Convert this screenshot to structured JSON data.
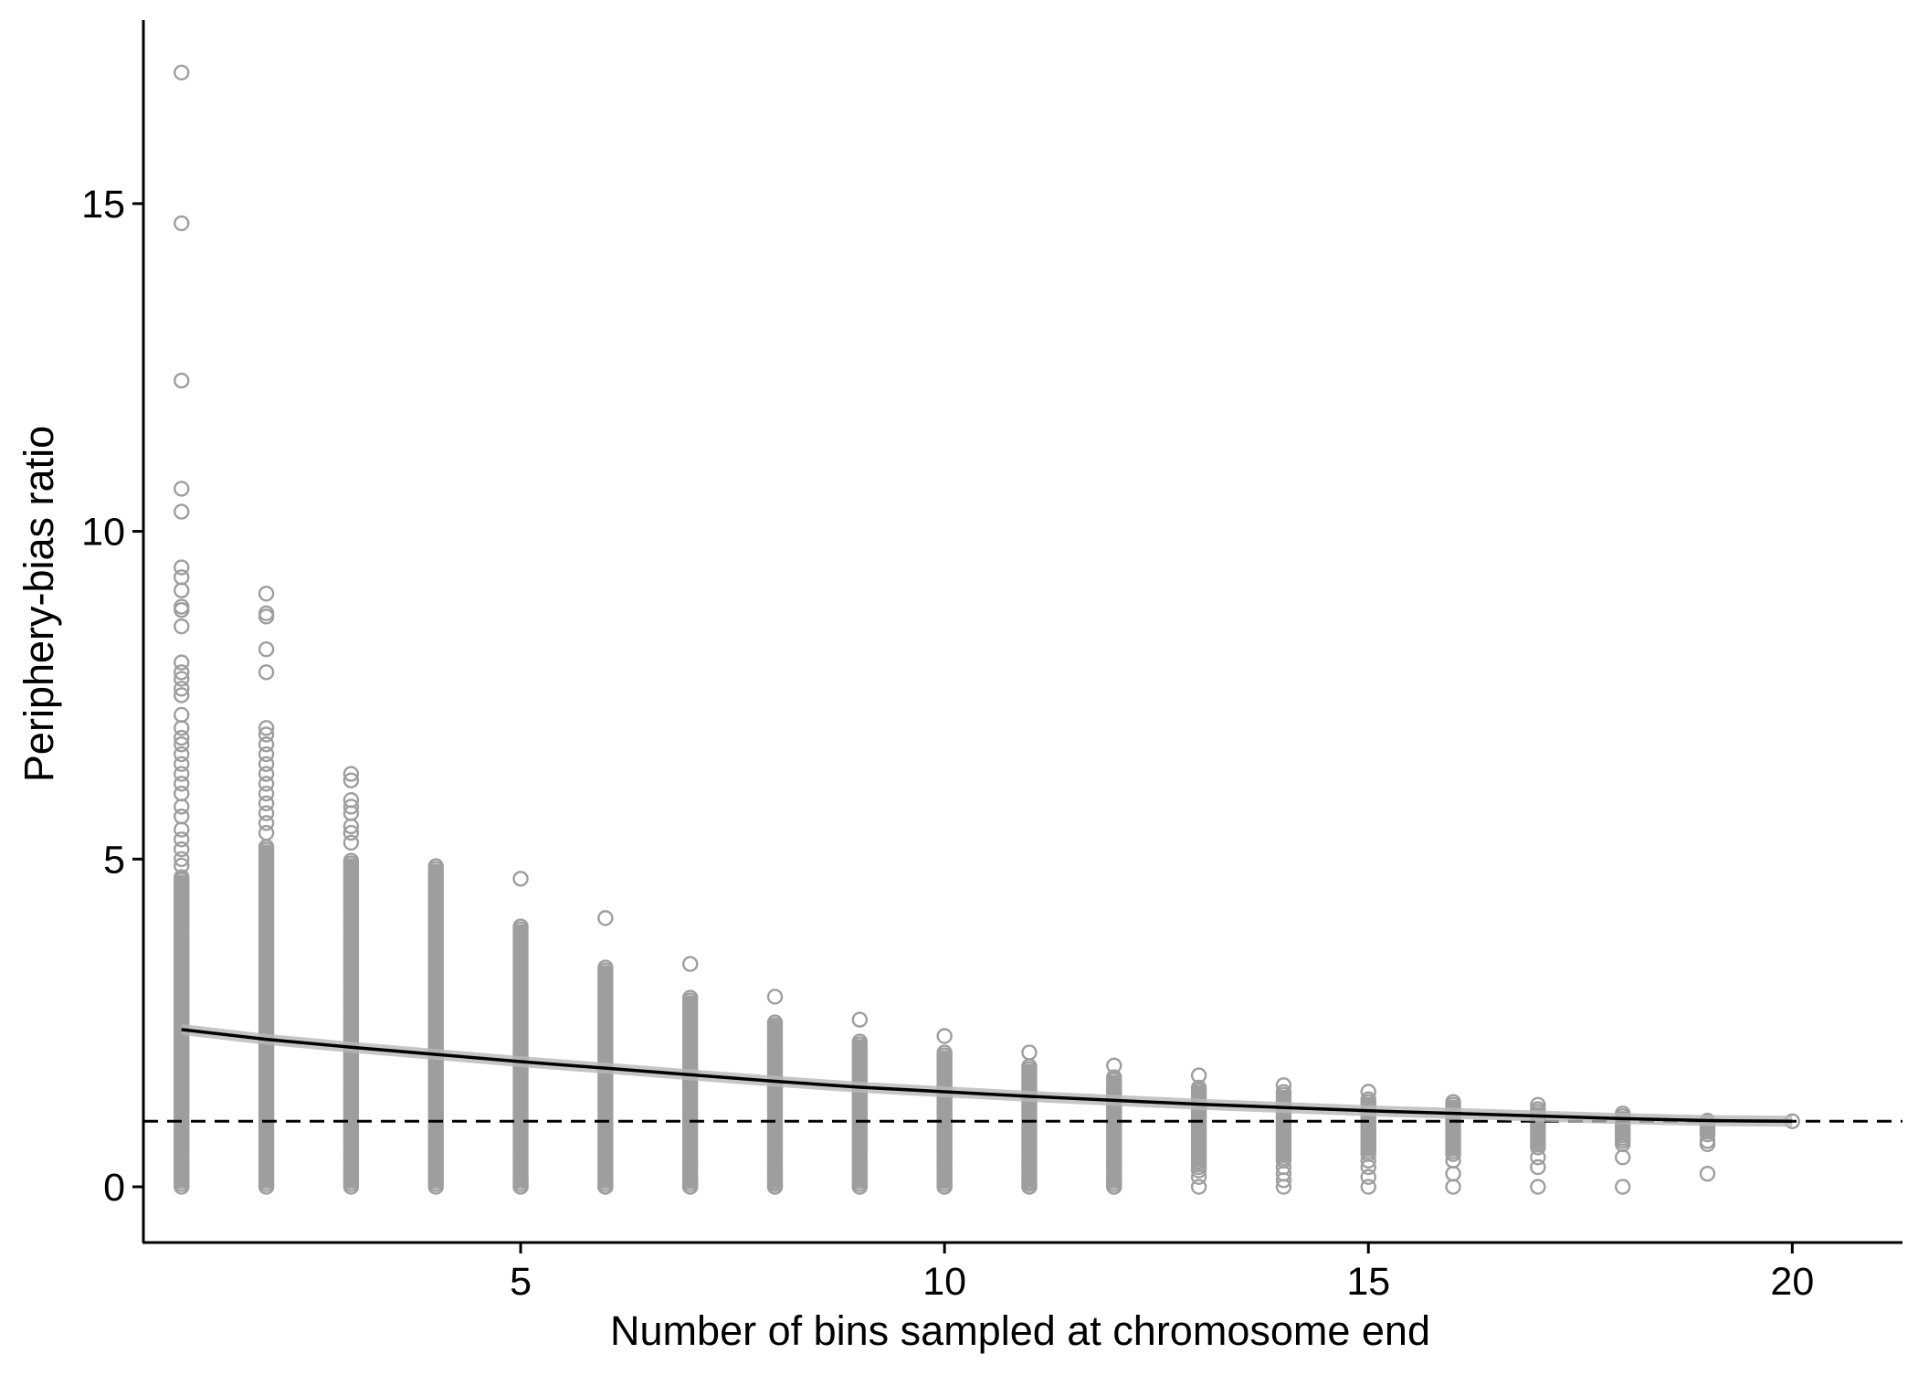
{
  "chart_data": {
    "type": "scatter",
    "title": "",
    "xlabel": "Number of bins sampled at chromosome end",
    "ylabel": "Periphery-bias ratio",
    "xlim": [
      0.55,
      21.3
    ],
    "ylim": [
      -0.85,
      17.8
    ],
    "x_ticks": [
      5,
      10,
      15,
      20
    ],
    "y_ticks": [
      0,
      5,
      10,
      15
    ],
    "x_tick_labels": [
      "5",
      "10",
      "15",
      "20"
    ],
    "y_tick_labels": [
      "0",
      "5",
      "10",
      "15"
    ],
    "grid": false,
    "legend": "none",
    "point_color": "#9e9e9e",
    "trend_color": "#000000",
    "trend_band_color": "#b8b8b8",
    "reference_line": {
      "y": 1,
      "style": "dashed",
      "color": "#000000"
    },
    "columns": [
      {
        "x": 1,
        "y_min": 0,
        "dense_max": 4.75,
        "outliers": [
          17.0,
          14.7,
          12.3,
          10.65,
          10.3,
          9.45,
          9.3,
          9.1,
          8.85,
          8.8,
          8.55,
          8.0,
          7.85,
          7.75,
          7.6,
          7.5,
          7.2,
          7.0,
          6.85,
          6.75,
          6.6,
          6.45,
          6.3,
          6.15,
          6.0,
          5.8,
          5.65,
          5.45,
          5.3,
          5.15,
          5.0,
          4.9
        ]
      },
      {
        "x": 2,
        "y_min": 0,
        "dense_max": 5.2,
        "outliers": [
          9.05,
          8.75,
          8.7,
          8.2,
          7.85,
          7.0,
          6.9,
          6.75,
          6.6,
          6.45,
          6.3,
          6.15,
          6.0,
          5.85,
          5.7,
          5.55,
          5.4
        ]
      },
      {
        "x": 3,
        "y_min": 0,
        "dense_max": 5.0,
        "outliers": [
          6.3,
          6.2,
          5.9,
          5.8,
          5.7,
          5.5,
          5.4,
          5.25
        ]
      },
      {
        "x": 4,
        "y_min": 0,
        "dense_max": 4.9,
        "outliers": []
      },
      {
        "x": 5,
        "y_min": 0,
        "dense_max": 4.0,
        "outliers": [
          4.7,
          0.15,
          0.0
        ]
      },
      {
        "x": 6,
        "y_min": 0,
        "dense_max": 3.35,
        "outliers": [
          4.1,
          0.15,
          0.0
        ]
      },
      {
        "x": 7,
        "y_min": 0,
        "dense_max": 2.9,
        "outliers": [
          3.4,
          0.3,
          0.1,
          0.0
        ]
      },
      {
        "x": 8,
        "y_min": 0,
        "dense_max": 2.55,
        "outliers": [
          2.9,
          0.2,
          0.05,
          0.0
        ]
      },
      {
        "x": 9,
        "y_min": 0,
        "dense_max": 2.25,
        "outliers": [
          2.55,
          0.15,
          0.0
        ]
      },
      {
        "x": 10,
        "y_min": 0,
        "dense_max": 2.05,
        "outliers": [
          2.3,
          0.25,
          0.1,
          0.0
        ]
      },
      {
        "x": 11,
        "y_min": 0,
        "dense_max": 1.85,
        "outliers": [
          2.05,
          0.3,
          0.05,
          0.0
        ]
      },
      {
        "x": 12,
        "y_min": 0,
        "dense_max": 1.7,
        "outliers": [
          1.85,
          0.35,
          0.15,
          0.0
        ]
      },
      {
        "x": 13,
        "y_min": 0.3,
        "dense_max": 1.55,
        "outliers": [
          1.7,
          0.25,
          0.15,
          0.0
        ]
      },
      {
        "x": 14,
        "y_min": 0.4,
        "dense_max": 1.45,
        "outliers": [
          1.55,
          0.3,
          0.2,
          0.1,
          0.0
        ]
      },
      {
        "x": 15,
        "y_min": 0.5,
        "dense_max": 1.35,
        "outliers": [
          1.45,
          0.4,
          0.3,
          0.15,
          0.0
        ]
      },
      {
        "x": 16,
        "y_min": 0.5,
        "dense_max": 1.3,
        "outliers": [
          0.4,
          0.2,
          0.0
        ]
      },
      {
        "x": 17,
        "y_min": 0.6,
        "dense_max": 1.2,
        "outliers": [
          1.25,
          0.45,
          0.3,
          0.0
        ]
      },
      {
        "x": 18,
        "y_min": 0.7,
        "dense_max": 1.12,
        "outliers": [
          0.65,
          0.45,
          0.0
        ]
      },
      {
        "x": 19,
        "y_min": 0.8,
        "dense_max": 1.05,
        "outliers": [
          0.7,
          0.65,
          0.2
        ]
      },
      {
        "x": 20,
        "y_min": 1.0,
        "dense_max": 1.0,
        "outliers": []
      }
    ],
    "trend_line": {
      "x": [
        1,
        2,
        3,
        4,
        5,
        6,
        7,
        8,
        9,
        10,
        11,
        12,
        13,
        14,
        15,
        16,
        17,
        18,
        19,
        20
      ],
      "y": [
        2.4,
        2.25,
        2.13,
        2.02,
        1.91,
        1.81,
        1.71,
        1.61,
        1.52,
        1.45,
        1.38,
        1.32,
        1.26,
        1.21,
        1.16,
        1.12,
        1.08,
        1.04,
        1.01,
        1.0
      ]
    }
  }
}
